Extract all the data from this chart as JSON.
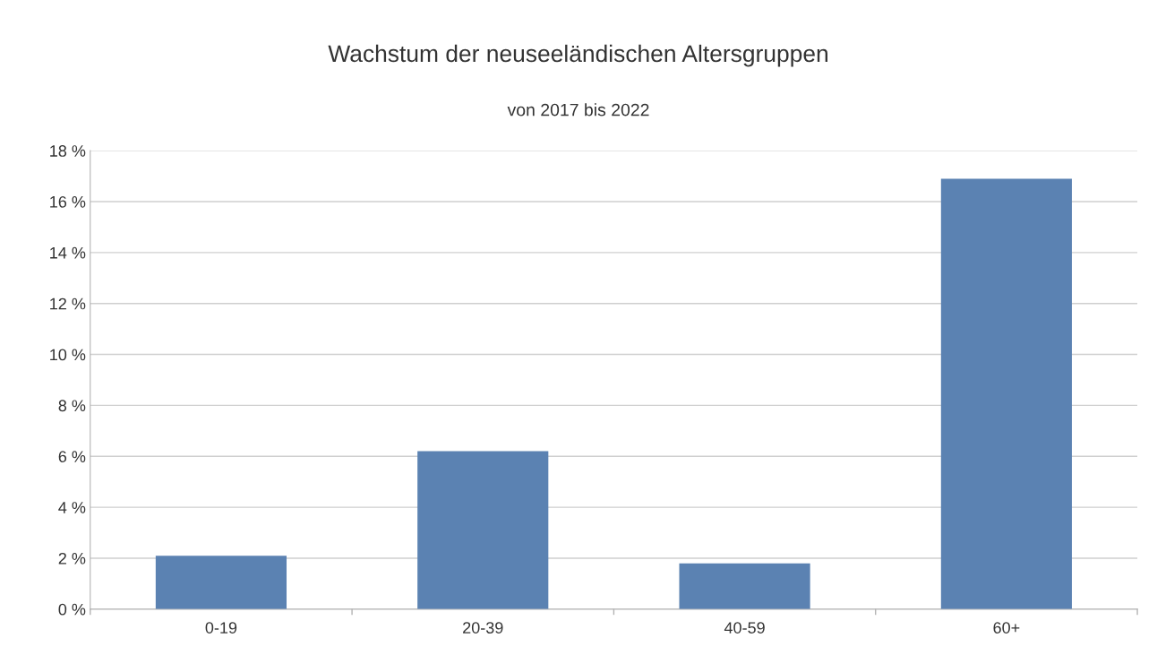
{
  "chart_data": {
    "type": "bar",
    "title": "Wachstum der neuseeländischen Altersgruppen",
    "subtitle": "von 2017 bis 2022",
    "categories": [
      "0-19",
      "20-39",
      "40-59",
      "60+"
    ],
    "values": [
      2.1,
      6.2,
      1.8,
      16.9
    ],
    "color": "#5b82b2",
    "ylim": [
      0,
      18
    ],
    "yticks": [
      {
        "value": 0,
        "label": "0 %"
      },
      {
        "value": 2,
        "label": "2 %"
      },
      {
        "value": 4,
        "label": "4 %"
      },
      {
        "value": 6,
        "label": "6 %"
      },
      {
        "value": 8,
        "label": "8 %"
      },
      {
        "value": 10,
        "label": "10 %"
      },
      {
        "value": 12,
        "label": "12 %"
      },
      {
        "value": 14,
        "label": "14 %"
      },
      {
        "value": 16,
        "label": "16 %"
      },
      {
        "value": 18,
        "label": "18 %"
      }
    ],
    "grid": "y"
  }
}
